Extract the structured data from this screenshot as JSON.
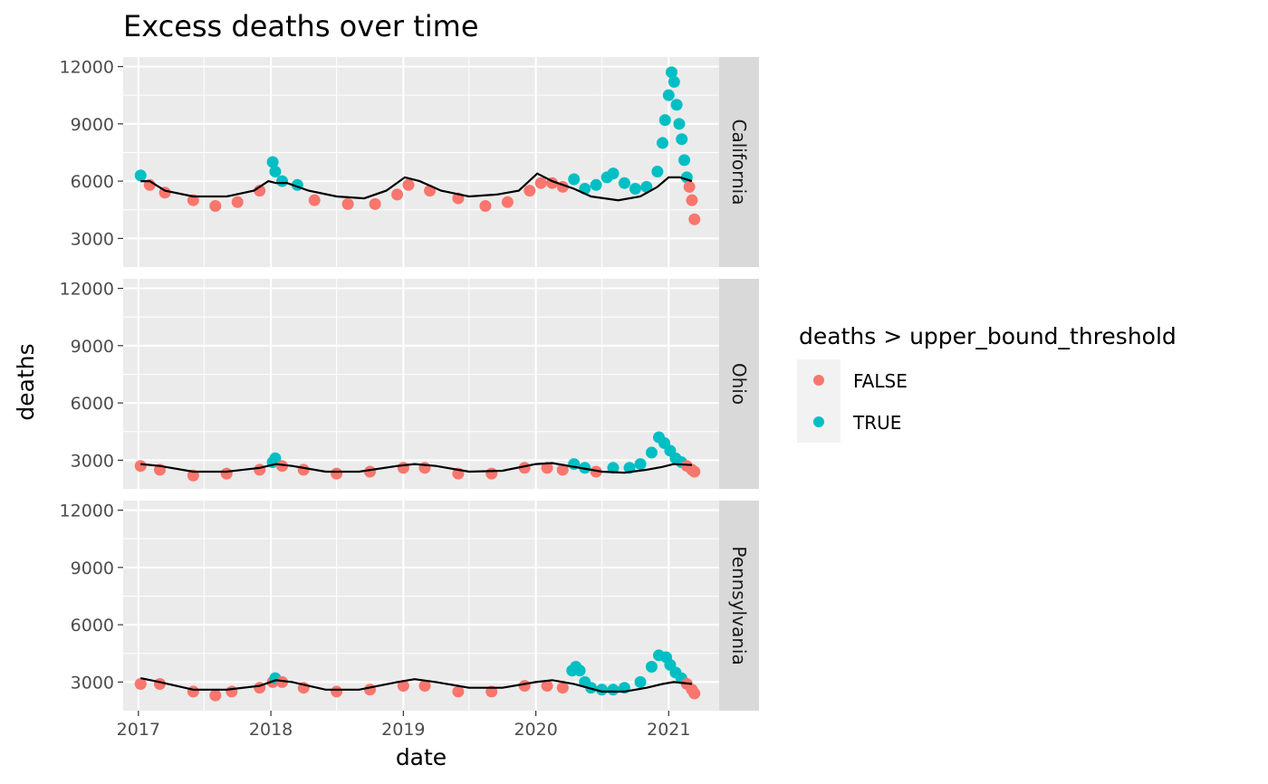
{
  "chart_data": {
    "type": "scatter",
    "title": "Excess deaths over time",
    "xlabel": "date",
    "ylabel": "deaths",
    "x_ticks": [
      "2017",
      "2018",
      "2019",
      "2020",
      "2021"
    ],
    "y_ticks": [
      3000,
      6000,
      9000,
      12000
    ],
    "ylim": [
      1500,
      12500
    ],
    "xlim": [
      "2016-11-20",
      "2021-05-20"
    ],
    "facets": [
      "California",
      "Ohio",
      "Pennsylvania"
    ],
    "facet_position": "right",
    "grid": true,
    "legend": {
      "title": "deaths > upper_bound_threshold",
      "position": "right",
      "entries": [
        {
          "label": "FALSE",
          "color": "#F8766D"
        },
        {
          "label": "TRUE",
          "color": "#00BFC4"
        }
      ]
    },
    "line_series": "upper_bound_threshold",
    "line_color": "#000000",
    "panels": [
      {
        "state": "California",
        "threshold": [
          [
            "2017-01-07",
            6000
          ],
          [
            "2017-02-01",
            6000
          ],
          [
            "2017-03-15",
            5500
          ],
          [
            "2017-06-01",
            5200
          ],
          [
            "2017-09-01",
            5200
          ],
          [
            "2017-11-15",
            5500
          ],
          [
            "2017-12-25",
            6000
          ],
          [
            "2018-01-15",
            5900
          ],
          [
            "2018-02-15",
            5900
          ],
          [
            "2018-04-15",
            5500
          ],
          [
            "2018-07-01",
            5200
          ],
          [
            "2018-09-15",
            5100
          ],
          [
            "2018-11-15",
            5500
          ],
          [
            "2019-01-05",
            6200
          ],
          [
            "2019-02-15",
            6000
          ],
          [
            "2019-04-15",
            5500
          ],
          [
            "2019-07-01",
            5200
          ],
          [
            "2019-09-15",
            5300
          ],
          [
            "2019-11-15",
            5500
          ],
          [
            "2020-01-05",
            6400
          ],
          [
            "2020-02-15",
            6000
          ],
          [
            "2020-04-15",
            5600
          ],
          [
            "2020-06-01",
            5200
          ],
          [
            "2020-08-15",
            5000
          ],
          [
            "2020-10-15",
            5200
          ],
          [
            "2020-12-01",
            5700
          ],
          [
            "2021-01-01",
            6200
          ],
          [
            "2021-02-01",
            6200
          ],
          [
            "2021-03-06",
            6000
          ]
        ],
        "points": [
          [
            "2017-01-07",
            6300
          ],
          [
            "2017-02-01",
            5800
          ],
          [
            "2017-03-15",
            5400
          ],
          [
            "2017-06-01",
            5000
          ],
          [
            "2017-08-01",
            4700
          ],
          [
            "2017-10-01",
            4900
          ],
          [
            "2017-12-01",
            5500
          ],
          [
            "2018-01-06",
            7000
          ],
          [
            "2018-01-13",
            6500
          ],
          [
            "2018-02-01",
            6000
          ],
          [
            "2018-03-15",
            5800
          ],
          [
            "2018-05-01",
            5000
          ],
          [
            "2018-08-01",
            4800
          ],
          [
            "2018-10-15",
            4800
          ],
          [
            "2018-12-15",
            5300
          ],
          [
            "2019-01-15",
            5800
          ],
          [
            "2019-03-15",
            5500
          ],
          [
            "2019-06-01",
            5100
          ],
          [
            "2019-08-15",
            4700
          ],
          [
            "2019-10-15",
            4900
          ],
          [
            "2019-12-15",
            5500
          ],
          [
            "2020-01-15",
            5900
          ],
          [
            "2020-02-15",
            5900
          ],
          [
            "2020-03-15",
            5700
          ],
          [
            "2020-04-15",
            6100
          ],
          [
            "2020-05-15",
            5600
          ],
          [
            "2020-06-15",
            5800
          ],
          [
            "2020-07-15",
            6200
          ],
          [
            "2020-08-01",
            6400
          ],
          [
            "2020-09-01",
            5900
          ],
          [
            "2020-10-01",
            5600
          ],
          [
            "2020-11-01",
            5700
          ],
          [
            "2020-12-01",
            6500
          ],
          [
            "2020-12-15",
            8000
          ],
          [
            "2020-12-22",
            9200
          ],
          [
            "2021-01-01",
            10500
          ],
          [
            "2021-01-09",
            11700
          ],
          [
            "2021-01-16",
            11200
          ],
          [
            "2021-01-23",
            10000
          ],
          [
            "2021-01-30",
            9000
          ],
          [
            "2021-02-06",
            8200
          ],
          [
            "2021-02-13",
            7100
          ],
          [
            "2021-02-20",
            6200
          ],
          [
            "2021-02-27",
            5700
          ],
          [
            "2021-03-06",
            5000
          ],
          [
            "2021-03-13",
            4000
          ]
        ]
      },
      {
        "state": "Ohio",
        "threshold": [
          [
            "2017-01-07",
            2800
          ],
          [
            "2017-03-01",
            2700
          ],
          [
            "2017-06-01",
            2400
          ],
          [
            "2017-09-01",
            2400
          ],
          [
            "2017-12-01",
            2600
          ],
          [
            "2018-01-15",
            2800
          ],
          [
            "2018-03-01",
            2700
          ],
          [
            "2018-06-01",
            2400
          ],
          [
            "2018-09-01",
            2400
          ],
          [
            "2018-12-15",
            2700
          ],
          [
            "2019-02-01",
            2800
          ],
          [
            "2019-04-01",
            2700
          ],
          [
            "2019-07-01",
            2400
          ],
          [
            "2019-10-01",
            2450
          ],
          [
            "2020-01-01",
            2800
          ],
          [
            "2020-02-15",
            2850
          ],
          [
            "2020-04-15",
            2650
          ],
          [
            "2020-07-01",
            2400
          ],
          [
            "2020-09-01",
            2350
          ],
          [
            "2020-11-01",
            2500
          ],
          [
            "2020-12-15",
            2650
          ],
          [
            "2021-01-15",
            2800
          ],
          [
            "2021-03-06",
            2750
          ]
        ],
        "points": [
          [
            "2017-01-07",
            2700
          ],
          [
            "2017-03-01",
            2500
          ],
          [
            "2017-06-01",
            2200
          ],
          [
            "2017-09-01",
            2300
          ],
          [
            "2017-12-01",
            2500
          ],
          [
            "2018-01-06",
            2900
          ],
          [
            "2018-01-13",
            3100
          ],
          [
            "2018-02-01",
            2700
          ],
          [
            "2018-04-01",
            2500
          ],
          [
            "2018-07-01",
            2300
          ],
          [
            "2018-10-01",
            2400
          ],
          [
            "2019-01-01",
            2600
          ],
          [
            "2019-03-01",
            2600
          ],
          [
            "2019-06-01",
            2300
          ],
          [
            "2019-09-01",
            2300
          ],
          [
            "2019-12-01",
            2600
          ],
          [
            "2020-02-01",
            2600
          ],
          [
            "2020-03-15",
            2500
          ],
          [
            "2020-04-15",
            2800
          ],
          [
            "2020-05-15",
            2600
          ],
          [
            "2020-06-15",
            2400
          ],
          [
            "2020-08-01",
            2600
          ],
          [
            "2020-09-15",
            2600
          ],
          [
            "2020-10-15",
            2800
          ],
          [
            "2020-11-15",
            3400
          ],
          [
            "2020-12-05",
            4200
          ],
          [
            "2020-12-20",
            3900
          ],
          [
            "2021-01-05",
            3500
          ],
          [
            "2021-01-20",
            3100
          ],
          [
            "2021-02-05",
            2900
          ],
          [
            "2021-02-20",
            2700
          ],
          [
            "2021-03-06",
            2500
          ],
          [
            "2021-03-13",
            2400
          ]
        ]
      },
      {
        "state": "Pennsylvania",
        "threshold": [
          [
            "2017-01-07",
            3200
          ],
          [
            "2017-03-01",
            3000
          ],
          [
            "2017-06-01",
            2600
          ],
          [
            "2017-09-01",
            2600
          ],
          [
            "2017-12-01",
            2800
          ],
          [
            "2018-01-15",
            3100
          ],
          [
            "2018-03-01",
            3000
          ],
          [
            "2018-06-01",
            2600
          ],
          [
            "2018-09-01",
            2600
          ],
          [
            "2018-12-15",
            3000
          ],
          [
            "2019-02-01",
            3150
          ],
          [
            "2019-04-01",
            3000
          ],
          [
            "2019-07-01",
            2700
          ],
          [
            "2019-10-01",
            2700
          ],
          [
            "2020-01-01",
            3000
          ],
          [
            "2020-02-15",
            3100
          ],
          [
            "2020-04-15",
            2900
          ],
          [
            "2020-07-01",
            2500
          ],
          [
            "2020-09-01",
            2500
          ],
          [
            "2020-11-01",
            2700
          ],
          [
            "2020-12-15",
            2900
          ],
          [
            "2021-01-15",
            3000
          ],
          [
            "2021-03-06",
            2900
          ]
        ],
        "points": [
          [
            "2017-01-07",
            2900
          ],
          [
            "2017-03-01",
            2900
          ],
          [
            "2017-06-01",
            2500
          ],
          [
            "2017-08-01",
            2300
          ],
          [
            "2017-09-15",
            2500
          ],
          [
            "2017-12-01",
            2700
          ],
          [
            "2018-01-06",
            3000
          ],
          [
            "2018-01-13",
            3200
          ],
          [
            "2018-02-01",
            3000
          ],
          [
            "2018-04-01",
            2700
          ],
          [
            "2018-07-01",
            2500
          ],
          [
            "2018-10-01",
            2600
          ],
          [
            "2019-01-01",
            2800
          ],
          [
            "2019-03-01",
            2800
          ],
          [
            "2019-06-01",
            2500
          ],
          [
            "2019-09-01",
            2500
          ],
          [
            "2019-12-01",
            2800
          ],
          [
            "2020-02-01",
            2800
          ],
          [
            "2020-03-15",
            2700
          ],
          [
            "2020-04-10",
            3600
          ],
          [
            "2020-04-20",
            3800
          ],
          [
            "2020-05-01",
            3600
          ],
          [
            "2020-05-15",
            3000
          ],
          [
            "2020-06-01",
            2700
          ],
          [
            "2020-07-01",
            2600
          ],
          [
            "2020-08-01",
            2600
          ],
          [
            "2020-09-01",
            2700
          ],
          [
            "2020-10-15",
            3000
          ],
          [
            "2020-11-15",
            3800
          ],
          [
            "2020-12-05",
            4400
          ],
          [
            "2020-12-25",
            4300
          ],
          [
            "2021-01-05",
            3900
          ],
          [
            "2021-01-20",
            3500
          ],
          [
            "2021-02-05",
            3200
          ],
          [
            "2021-02-20",
            2900
          ],
          [
            "2021-03-06",
            2600
          ],
          [
            "2021-03-13",
            2400
          ]
        ]
      }
    ]
  }
}
